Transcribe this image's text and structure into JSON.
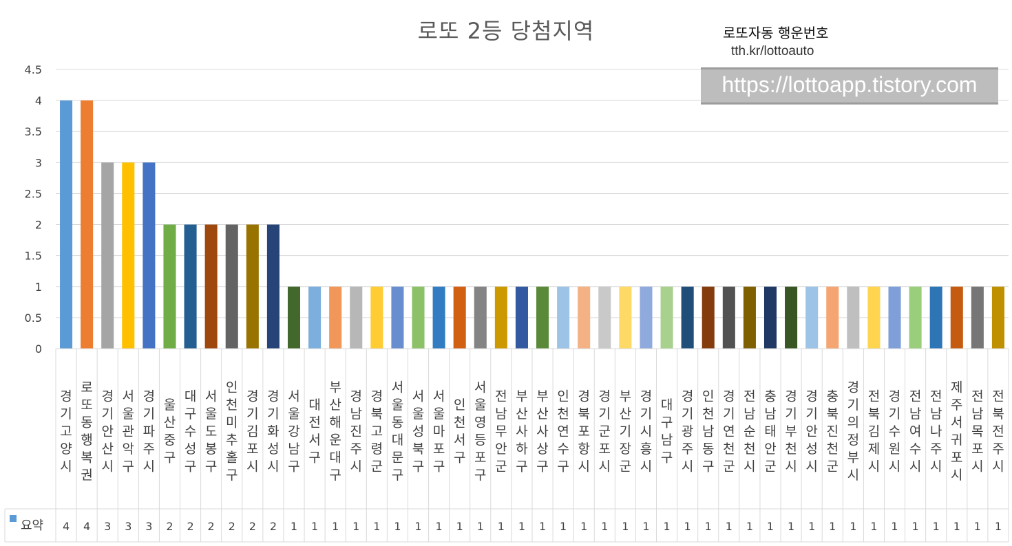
{
  "title": "로또 2등 당첨지역",
  "brand": {
    "name": "로또자동 행운번호",
    "url": "tth.kr/lottoauto",
    "watermark": "https://lottoapp.tistory.com"
  },
  "table": {
    "legend_label": "요약",
    "legend_color": "#5b9bd5"
  },
  "chart_data": {
    "type": "bar",
    "title": "로또 2등 당첨지역",
    "ylim": [
      0,
      4.5
    ],
    "yticks": [
      0,
      0.5,
      1,
      1.5,
      2,
      2.5,
      3,
      3.5,
      4,
      4.5
    ],
    "ytick_labels": [
      "0",
      "0.5",
      "1",
      "1.5",
      "2",
      "2.5",
      "3",
      "3.5",
      "4",
      "4.5"
    ],
    "grid": true,
    "legend": "bottom-left (data table)",
    "categories": [
      "경기고양시",
      "로또동행복권",
      "경기안산시",
      "서울관악구",
      "경기파주시",
      "울산중구",
      "대구수성구",
      "서울도봉구",
      "인천미추홀구",
      "경기김포시",
      "경기화성시",
      "서울강남구",
      "대전서구",
      "부산해운대구",
      "경남진주시",
      "경북고령군",
      "서울동대문구",
      "서울성북구",
      "서울마포구",
      "인천서구",
      "서울영등포구",
      "전남무안군",
      "부산사하구",
      "부산사상구",
      "인천연수구",
      "경북포항시",
      "경기군포시",
      "부산기장군",
      "경기시흥시",
      "대구남구",
      "경기광주시",
      "인천남동구",
      "경기연천군",
      "전남순천시",
      "충남태안군",
      "경기부천시",
      "경기안성시",
      "충북진천군",
      "경기의정부시",
      "전북김제시",
      "경기수원시",
      "전남여수시",
      "전남나주시",
      "제주서귀포시",
      "전남목포시",
      "전북전주시"
    ],
    "series": [
      {
        "name": "요약",
        "values": [
          4,
          4,
          3,
          3,
          3,
          2,
          2,
          2,
          2,
          2,
          2,
          1,
          1,
          1,
          1,
          1,
          1,
          1,
          1,
          1,
          1,
          1,
          1,
          1,
          1,
          1,
          1,
          1,
          1,
          1,
          1,
          1,
          1,
          1,
          1,
          1,
          1,
          1,
          1,
          1,
          1,
          1,
          1,
          1,
          1,
          1
        ]
      }
    ],
    "bar_colors": [
      "#5b9bd5",
      "#ed7d31",
      "#a5a5a5",
      "#ffc000",
      "#4472c4",
      "#70ad47",
      "#255e91",
      "#9e480e",
      "#636363",
      "#997300",
      "#264478",
      "#43682b",
      "#7cafdd",
      "#f1975a",
      "#b7b7b7",
      "#ffcd33",
      "#698ed0",
      "#8cc168",
      "#327dc2",
      "#d26012",
      "#848484",
      "#cc9a00",
      "#335aa1",
      "#5a8a39",
      "#9dc3e6",
      "#f4b183",
      "#c9c9c9",
      "#ffd966",
      "#8faadc",
      "#a9d18e",
      "#1f4e79",
      "#843c0c",
      "#525252",
      "#7f6000",
      "#203864",
      "#375623",
      "#9dc3e6",
      "#f4a572",
      "#bfbfbf",
      "#ffd54f",
      "#7f9fd8",
      "#9bce7a",
      "#2e75b6",
      "#c55a11",
      "#767676",
      "#bf9000"
    ]
  }
}
